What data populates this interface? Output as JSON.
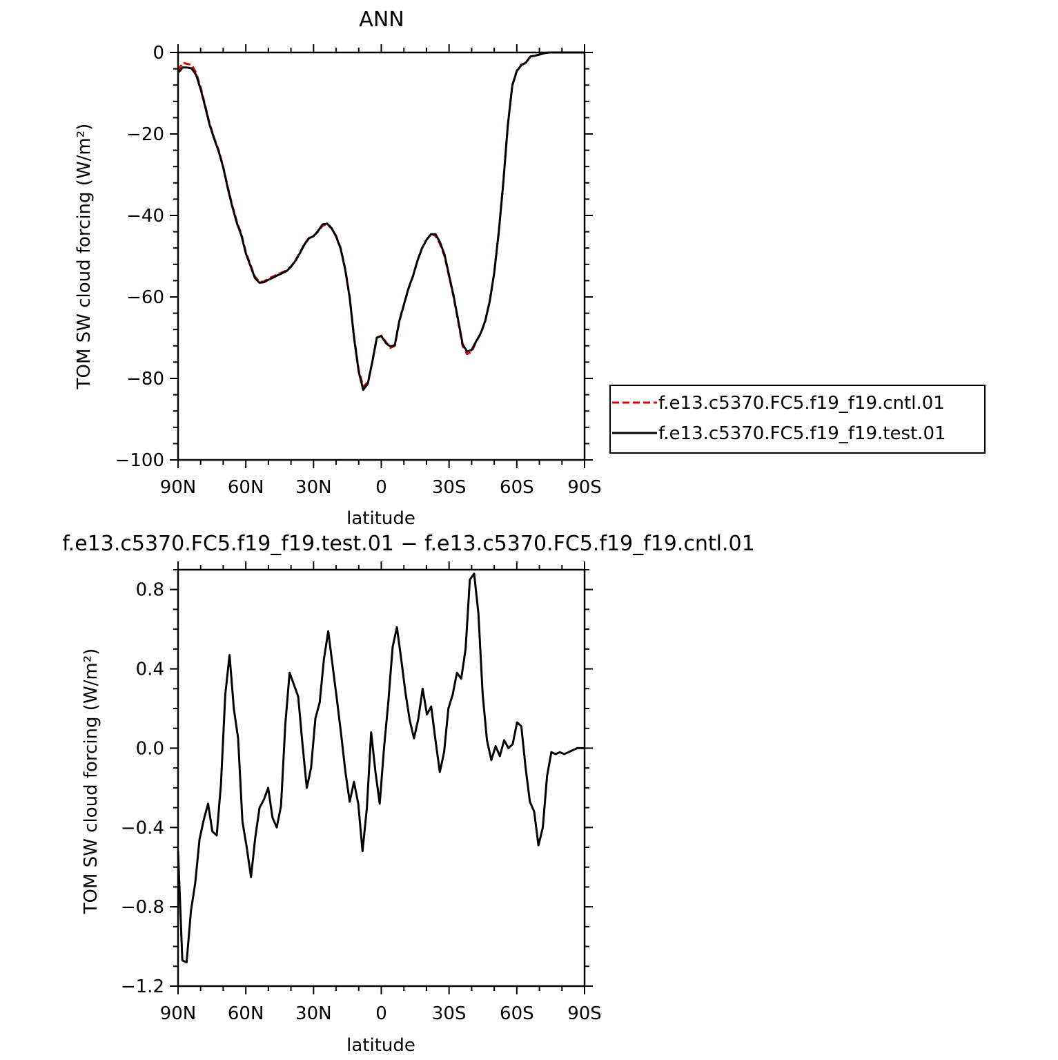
{
  "chart_data": [
    {
      "type": "line",
      "title": "ANN",
      "xlabel": "latitude",
      "ylabel": "TOM SW cloud forcing (W/m²)",
      "xlim": [
        90,
        -90
      ],
      "ylim": [
        -100,
        0
      ],
      "xticks": [
        90,
        60,
        30,
        0,
        -30,
        -60,
        -90
      ],
      "xtick_labels": [
        "90N",
        "60N",
        "30N",
        "0",
        "30S",
        "60S",
        "90S"
      ],
      "yticks": [
        0,
        -20,
        -40,
        -60,
        -80,
        -100
      ],
      "ytick_labels": [
        "0",
        "−20",
        "−40",
        "−60",
        "−80",
        "−100"
      ],
      "legend": "right",
      "series": [
        {
          "name": "f.e13.c5370.FC5.f19_f19.cntl.01",
          "color": "#e00000",
          "dash": "dashed",
          "x": [
            90,
            88,
            86,
            84,
            82,
            80,
            78,
            76,
            74,
            72,
            70,
            68,
            66,
            64,
            62,
            60,
            58,
            56,
            54,
            52,
            50,
            48,
            46,
            44,
            42,
            40,
            38,
            36,
            34,
            32,
            30,
            28,
            26,
            24,
            22,
            20,
            18,
            16,
            14,
            12,
            10,
            8,
            6,
            4,
            2,
            0,
            -2,
            -4,
            -6,
            -8,
            -10,
            -12,
            -14,
            -16,
            -18,
            -20,
            -22,
            -24,
            -26,
            -28,
            -30,
            -32,
            -34,
            -36,
            -38,
            -40,
            -42,
            -44,
            -46,
            -48,
            -50,
            -52,
            -54,
            -56,
            -58,
            -60,
            -62,
            -64,
            -66,
            -68,
            -70,
            -72,
            -74,
            -76,
            -78,
            -80,
            -82,
            -84,
            -86,
            -88,
            -90
          ],
          "y": [
            -4.5,
            -2.5,
            -2.8,
            -3.0,
            -5.0,
            -8.5,
            -13,
            -17.5,
            -21,
            -24,
            -28,
            -33,
            -37.5,
            -41.5,
            -44.5,
            -49,
            -52,
            -55,
            -56.3,
            -56.2,
            -55.5,
            -55,
            -54.5,
            -54,
            -53.5,
            -52.5,
            -51,
            -49,
            -47,
            -45.5,
            -45,
            -44,
            -42.5,
            -42.2,
            -43.2,
            -45,
            -48,
            -53,
            -60,
            -70,
            -78,
            -82,
            -81,
            -76,
            -70,
            -69.5,
            -71,
            -72.5,
            -72,
            -66,
            -62,
            -58,
            -55,
            -51,
            -48,
            -46,
            -44.5,
            -45,
            -47,
            -50,
            -55,
            -60,
            -66,
            -72,
            -74,
            -73.5,
            -71,
            -69,
            -66,
            -61,
            -54,
            -44,
            -32,
            -18,
            -8,
            -4.5,
            -3,
            -2.5,
            -1.0,
            -0.8,
            -0.5,
            -0.2,
            0,
            0,
            0,
            0,
            0,
            0,
            0,
            0,
            0
          ]
        },
        {
          "name": "f.e13.c5370.FC5.f19_f19.test.01",
          "color": "#000000",
          "dash": "solid",
          "x": [
            90,
            88,
            86,
            84,
            82,
            80,
            78,
            76,
            74,
            72,
            70,
            68,
            66,
            64,
            62,
            60,
            58,
            56,
            54,
            52,
            50,
            48,
            46,
            44,
            42,
            40,
            38,
            36,
            34,
            32,
            30,
            28,
            26,
            24,
            22,
            20,
            18,
            16,
            14,
            12,
            10,
            8,
            6,
            4,
            2,
            0,
            -2,
            -4,
            -6,
            -8,
            -10,
            -12,
            -14,
            -16,
            -18,
            -20,
            -22,
            -24,
            -26,
            -28,
            -30,
            -32,
            -34,
            -36,
            -38,
            -40,
            -42,
            -44,
            -46,
            -48,
            -50,
            -52,
            -54,
            -56,
            -58,
            -60,
            -62,
            -64,
            -66,
            -68,
            -70,
            -72,
            -74,
            -76,
            -78,
            -80,
            -82,
            -84,
            -86,
            -88,
            -90
          ],
          "y": [
            -5.0,
            -3.7,
            -3.7,
            -3.9,
            -5.5,
            -9.0,
            -13.3,
            -17.8,
            -21.2,
            -24.3,
            -28.2,
            -33.3,
            -37.8,
            -41.8,
            -44.8,
            -49.3,
            -52.3,
            -55.3,
            -56.5,
            -56.4,
            -55.8,
            -55.3,
            -54.7,
            -54.2,
            -53.7,
            -52.6,
            -51.1,
            -49.2,
            -47.1,
            -45.6,
            -45.1,
            -43.8,
            -42.2,
            -42.0,
            -43.1,
            -45.2,
            -48.2,
            -53.2,
            -60.2,
            -70.3,
            -78.4,
            -82.8,
            -81.3,
            -76.0,
            -70.0,
            -69.6,
            -71.3,
            -72.2,
            -71.8,
            -65.8,
            -61.9,
            -57.9,
            -54.9,
            -51.1,
            -48.1,
            -46.0,
            -44.6,
            -44.6,
            -46.6,
            -49.6,
            -54.7,
            -59.7,
            -65.6,
            -71.6,
            -73.4,
            -73.0,
            -70.9,
            -68.9,
            -65.9,
            -61.1,
            -54.1,
            -44.1,
            -32.1,
            -18.1,
            -8.1,
            -4.6,
            -3.1,
            -2.5,
            -1.0,
            -0.8,
            -0.5,
            -0.2,
            0,
            0,
            0,
            0,
            0,
            0,
            0,
            0,
            0
          ]
        }
      ]
    },
    {
      "type": "line",
      "title": "f.e13.c5370.FC5.f19_f19.test.01 − f.e13.c5370.FC5.f19_f19.cntl.01",
      "xlabel": "latitude",
      "ylabel": "TOM SW cloud forcing (W/m²)",
      "xlim": [
        90,
        -90
      ],
      "ylim": [
        -1.2,
        0.9
      ],
      "xticks": [
        90,
        60,
        30,
        0,
        -30,
        -60,
        -90
      ],
      "xtick_labels": [
        "90N",
        "60N",
        "30N",
        "0",
        "30S",
        "60S",
        "90S"
      ],
      "yticks": [
        0.8,
        0.4,
        0.0,
        -0.4,
        -0.8,
        -1.2
      ],
      "ytick_labels": [
        "0.8",
        "0.4",
        "0.0",
        "−0.4",
        "−0.8",
        "−1.2"
      ],
      "series": [
        {
          "color": "#000000",
          "dash": "solid",
          "x": [
            90,
            88.1,
            86.2,
            84.3,
            82.4,
            80.5,
            78.6,
            76.7,
            74.8,
            72.9,
            71.0,
            69.1,
            67.2,
            65.3,
            63.4,
            61.5,
            59.6,
            57.7,
            55.8,
            53.9,
            52.0,
            50.1,
            48.2,
            46.3,
            44.4,
            42.5,
            40.6,
            38.7,
            36.8,
            34.9,
            33.0,
            31.1,
            29.2,
            27.3,
            25.4,
            23.5,
            21.6,
            19.7,
            17.8,
            15.9,
            14.0,
            12.1,
            10.2,
            8.3,
            6.4,
            4.5,
            2.6,
            0.7,
            -1.2,
            -3.1,
            -5.0,
            -6.9,
            -8.8,
            -10.7,
            -12.6,
            -14.5,
            -16.4,
            -18.3,
            -20.2,
            -22.1,
            -24.0,
            -25.9,
            -27.8,
            -29.7,
            -31.6,
            -33.5,
            -35.4,
            -37.3,
            -39.2,
            -41.1,
            -43.0,
            -44.9,
            -46.8,
            -48.7,
            -50.6,
            -52.5,
            -54.4,
            -56.3,
            -58.2,
            -60.1,
            -62.0,
            -63.9,
            -65.8,
            -67.7,
            -69.6,
            -71.5,
            -73.4,
            -75.3,
            -77.2,
            -79.1,
            -81.0,
            -82.9,
            -84.8,
            -86.7,
            -88.6,
            -90
          ],
          "y": [
            -0.52,
            -1.07,
            -1.08,
            -0.82,
            -0.68,
            -0.46,
            -0.36,
            -0.28,
            -0.42,
            -0.44,
            -0.18,
            0.27,
            0.47,
            0.2,
            0.05,
            -0.37,
            -0.5,
            -0.65,
            -0.45,
            -0.3,
            -0.26,
            -0.2,
            -0.35,
            -0.4,
            -0.29,
            0.12,
            0.38,
            0.32,
            0.26,
            0.02,
            -0.2,
            -0.1,
            0.15,
            0.23,
            0.45,
            0.59,
            0.42,
            0.25,
            0.07,
            -0.12,
            -0.27,
            -0.17,
            -0.28,
            -0.52,
            -0.3,
            0.08,
            -0.12,
            -0.28,
            0.0,
            0.23,
            0.51,
            0.61,
            0.45,
            0.28,
            0.14,
            0.05,
            0.15,
            0.3,
            0.17,
            0.21,
            0.04,
            -0.12,
            -0.02,
            0.2,
            0.27,
            0.38,
            0.35,
            0.5,
            0.85,
            0.88,
            0.68,
            0.27,
            0.04,
            -0.06,
            0.01,
            -0.04,
            0.04,
            0.0,
            0.02,
            0.13,
            0.11,
            -0.1,
            -0.27,
            -0.32,
            -0.49,
            -0.4,
            -0.14,
            -0.02,
            -0.03,
            -0.02,
            -0.03,
            -0.02,
            -0.01,
            0.0,
            0.0,
            0.0
          ]
        }
      ]
    }
  ]
}
